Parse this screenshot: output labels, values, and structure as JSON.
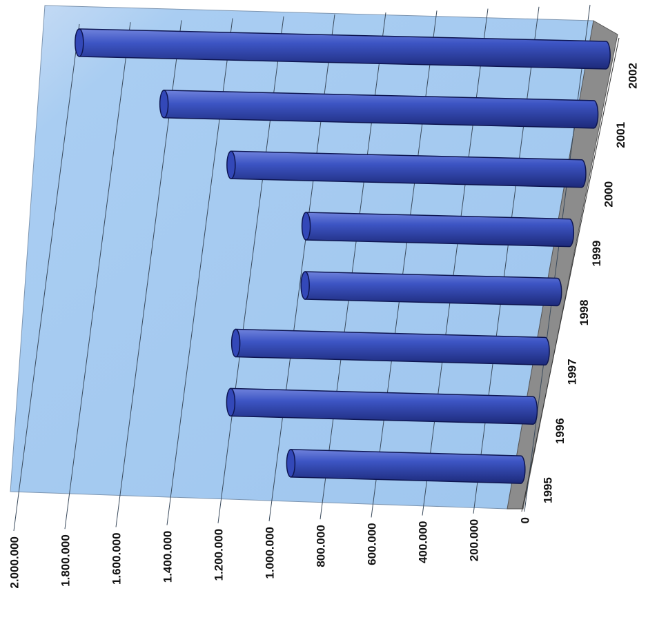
{
  "chart_data": {
    "type": "bar",
    "orientation": "horizontal",
    "style": "3d-cylinder",
    "categories": [
      "1995",
      "1996",
      "1997",
      "1998",
      "1999",
      "2000",
      "2001",
      "2002"
    ],
    "values": [
      920000,
      1180000,
      1180000,
      940000,
      960000,
      1250000,
      1500000,
      1800000
    ],
    "value_tick_labels": [
      "0",
      "200.000",
      "400.000",
      "600.000",
      "800.000",
      "1.000.000",
      "1.200.000",
      "1.400.000",
      "1.600.000",
      "1.800.000",
      "2.000.000"
    ],
    "ylim": [
      0,
      2000000
    ],
    "title": "",
    "xlabel": "",
    "ylabel": "",
    "grid": true,
    "legend": "none",
    "colors": {
      "bar": "#3348b8",
      "bar_dark": "#1d2a7a",
      "bar_light": "#6f82dc",
      "wall": "#a9cdf2",
      "floor": "#8c8c8c",
      "grid": "#3a4a5c"
    }
  }
}
